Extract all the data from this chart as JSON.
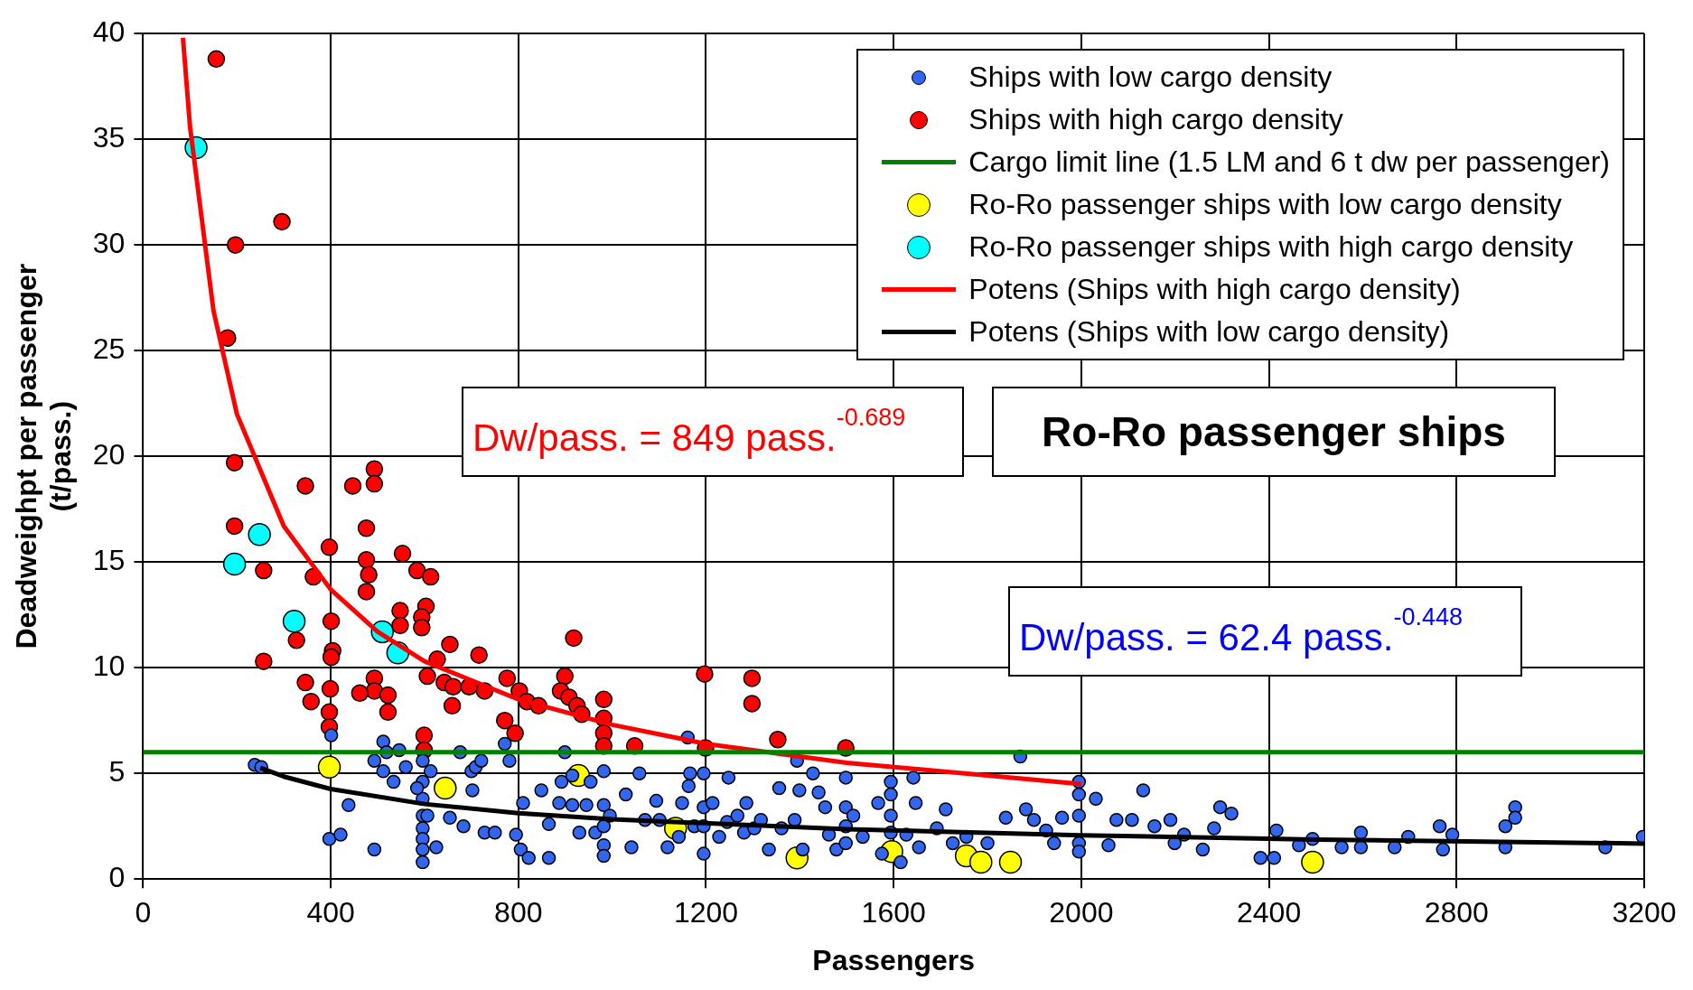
{
  "chart_data": {
    "type": "scatter",
    "title": "Ro-Ro passenger ships",
    "xlabel": "Passengers",
    "ylabel": "Deadweighpt per passenger\n(t/pass.)",
    "annotations": [
      "Dw/pass. = 849 pass.$^{-0.689}$",
      "Dw/pass. = 62.4 pass.$^{-0.448}$"
    ],
    "xlim": [
      0,
      3200
    ],
    "xticks": [
      0,
      400,
      800,
      1200,
      1600,
      2000,
      2400,
      2800,
      3200
    ],
    "ylim": [
      0,
      40
    ],
    "yticks": [
      0,
      5,
      10,
      15,
      20,
      25,
      30,
      35,
      40
    ],
    "grid": true,
    "legend": "top right",
    "series": [
      {
        "name": "Ships with low cargo density",
        "marker": "circle",
        "color": "#3366ee",
        "x": [
          238,
          252,
          401,
          397,
          421,
          438,
          493,
          493,
          512,
          512,
          519,
          534,
          546,
          560,
          596,
          596,
          596,
          596,
          596,
          596,
          596,
          596,
          584,
          613,
          606,
          625,
          654,
          676,
          683,
          700,
          709,
          721,
          702,
          728,
          750,
          771,
          781,
          795,
          805,
          810,
          822,
          849,
          865,
          865,
          892,
          887,
          899,
          915,
          915,
          930,
          945,
          964,
          954,
          982,
          982,
          982,
          982,
          982,
          995,
          1029,
          1041,
          1058,
          1070,
          1094,
          1101,
          1118,
          1142,
          1149,
          1161,
          1166,
          1163,
          1175,
          1195,
          1195,
          1195,
          1195,
          1214,
          1228,
          1245,
          1248,
          1267,
          1281,
          1286,
          1303,
          1317,
          1334,
          1356,
          1361,
          1389,
          1394,
          1399,
          1406,
          1428,
          1440,
          1454,
          1462,
          1478,
          1498,
          1498,
          1498,
          1498,
          1514,
          1534,
          1567,
          1575,
          1594,
          1594,
          1594,
          1594,
          1615,
          1627,
          1642,
          1647,
          1654,
          1692,
          1711,
          1726,
          1755,
          1800,
          1839,
          1870,
          1882,
          1899,
          1925,
          1942,
          1959,
          1995,
          1995,
          1995,
          1995,
          1995,
          2031,
          2058,
          2075,
          2108,
          2132,
          2156,
          2190,
          2199,
          2219,
          2259,
          2283,
          2296,
          2320,
          2382,
          2411,
          2416,
          2464,
          2493,
          2555,
          2596,
          2596,
          2668,
          2697,
          2764,
          2771,
          2791,
          2904,
          2904,
          2925,
          2925,
          3117,
          3197
        ],
        "values": [
          5.4,
          5.3,
          6.8,
          1.9,
          2.1,
          3.5,
          5.6,
          1.4,
          5.1,
          6.5,
          6.0,
          4.6,
          6.1,
          5.3,
          5.6,
          4.6,
          3.8,
          3.0,
          2.4,
          1.9,
          1.4,
          0.8,
          4.3,
          5.1,
          3.0,
          1.5,
          2.9,
          6.0,
          2.5,
          5.1,
          5.3,
          5.6,
          4.2,
          2.2,
          2.2,
          6.4,
          5.6,
          2.1,
          1.4,
          3.6,
          1.0,
          4.2,
          1.0,
          2.6,
          4.6,
          3.6,
          6.0,
          4.9,
          3.5,
          2.2,
          3.5,
          2.2,
          4.6,
          5.1,
          3.5,
          2.5,
          1.6,
          1.1,
          3.0,
          4.0,
          1.5,
          5.0,
          2.8,
          3.7,
          2.8,
          1.5,
          2.0,
          3.6,
          6.7,
          5.0,
          4.4,
          2.5,
          5.0,
          3.4,
          2.5,
          1.2,
          3.6,
          2.0,
          2.7,
          4.8,
          3.0,
          2.2,
          3.6,
          2.4,
          2.8,
          1.4,
          4.3,
          2.4,
          2.8,
          5.6,
          4.2,
          1.4,
          5.0,
          4.1,
          3.4,
          2.1,
          1.4,
          4.8,
          3.4,
          2.5,
          1.7,
          3.0,
          2.0,
          3.6,
          1.2,
          4.6,
          4.0,
          3.0,
          2.2,
          0.8,
          2.1,
          4.8,
          3.6,
          1.5,
          2.4,
          3.3,
          1.7,
          2.0,
          1.7,
          2.9,
          5.8,
          3.3,
          2.8,
          2.3,
          1.7,
          2.9,
          4.6,
          4.0,
          3.0,
          1.7,
          1.3,
          3.8,
          1.6,
          2.8,
          2.8,
          4.2,
          2.5,
          2.8,
          1.7,
          2.1,
          1.4,
          2.4,
          3.4,
          3.1,
          1.0,
          1.0,
          2.3,
          1.6,
          1.9,
          1.5,
          2.2,
          1.5,
          1.5,
          2.0,
          2.5,
          1.4,
          2.1,
          2.5,
          1.5,
          3.4,
          2.9,
          1.5,
          2.0
        ]
      },
      {
        "name": "Ships with high cargo density",
        "marker": "circle",
        "color": "#ff0000",
        "x": [
          156,
          296,
          197,
          180,
          195,
          195,
          257,
          257,
          346,
          363,
          327,
          346,
          358,
          397,
          401,
          404,
          401,
          399,
          397,
          397,
          447,
          493,
          493,
          476,
          476,
          481,
          476,
          553,
          584,
          613,
          603,
          548,
          548,
          594,
          594,
          493,
          493,
          462,
          522,
          522,
          606,
          599,
          599,
          654,
          627,
          642,
          661,
          659,
          716,
          695,
          728,
          776,
          771,
          793,
          802,
          818,
          843,
          899,
          890,
          908,
          925,
          918,
          935,
          982,
          982,
          982,
          982,
          1048,
          1197,
          1199,
          1298,
          1298,
          1353,
          1498
        ],
        "values": [
          38.8,
          31.1,
          30,
          25.6,
          19.7,
          16.7,
          14.6,
          10.3,
          18.6,
          14.3,
          11.3,
          9.3,
          8.4,
          15.7,
          12.2,
          10.8,
          10.5,
          9.0,
          7.9,
          7.2,
          18.6,
          19.4,
          18.7,
          16.6,
          15.1,
          14.4,
          13.6,
          15.4,
          14.6,
          14.3,
          12.9,
          12.7,
          12.0,
          12.4,
          11.9,
          9.5,
          8.9,
          8.8,
          8.7,
          7.9,
          9.6,
          6.8,
          6.1,
          11.1,
          10.4,
          9.3,
          9.1,
          8.2,
          10.6,
          9.1,
          8.9,
          9.5,
          7.5,
          6.9,
          8.9,
          8.4,
          8.2,
          9.6,
          8.9,
          8.6,
          8.2,
          11.4,
          7.8,
          8.5,
          7.6,
          6.9,
          6.3,
          6.3,
          9.7,
          6.2,
          9.5,
          8.3,
          6.6,
          6.2
        ]
      },
      {
        "name": "Cargo limit line (1.5 LM and 6 t dw per passenger)",
        "type": "line",
        "color": "#008000",
        "x": [
          0,
          3200
        ],
        "values": [
          6,
          6
        ]
      },
      {
        "name": "Ro-Ro passenger ships with low cargo density",
        "marker": "circle",
        "color": "#ffff00",
        "x": [
          397,
          644,
          928,
          1135,
          1394,
          1596,
          1755,
          1786,
          1849,
          2493
        ],
        "values": [
          5.3,
          4.3,
          4.9,
          2.4,
          1.0,
          1.3,
          1.1,
          0.8,
          0.8,
          0.8
        ]
      },
      {
        "name": "Ro-Ro passenger ships with high cargo density",
        "marker": "circle",
        "color": "#00ffff",
        "x": [
          113,
          248,
          195,
          322,
          510,
          543
        ],
        "values": [
          34.6,
          16.3,
          14.9,
          12.2,
          11.7,
          10.7
        ]
      },
      {
        "name": "Potens (Ships with high cargo density)",
        "type": "line",
        "color": "#ff0000",
        "x": [
          85,
          100,
          150,
          200,
          300,
          400,
          500,
          600,
          800,
          1000,
          1200,
          1500,
          2000
        ],
        "values": [
          39.8,
          35.6,
          26.9,
          22.0,
          16.7,
          13.7,
          11.7,
          10.3,
          8.5,
          7.3,
          6.4,
          5.5,
          4.5
        ]
      },
      {
        "name": "Potens (Ships with low cargo density)",
        "type": "line",
        "color": "#000000",
        "x": [
          250,
          300,
          400,
          600,
          800,
          1000,
          1500,
          2000,
          2500,
          3200
        ],
        "values": [
          5.26,
          4.85,
          4.26,
          3.55,
          3.12,
          2.83,
          2.36,
          2.07,
          1.87,
          1.68
        ]
      }
    ]
  }
}
